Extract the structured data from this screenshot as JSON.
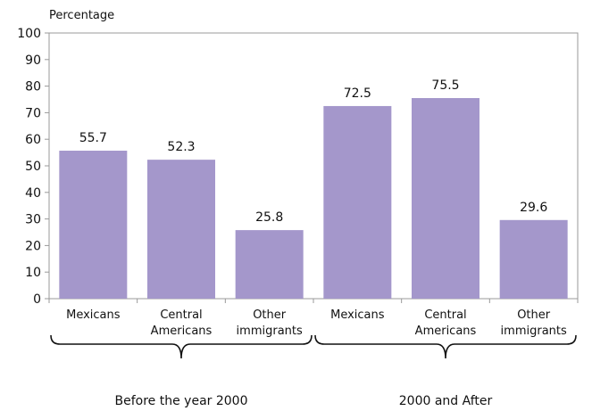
{
  "chart_data": {
    "type": "bar",
    "ylabel": "Percentage",
    "ylim": [
      0,
      100
    ],
    "yticks": [
      0,
      10,
      20,
      30,
      40,
      50,
      60,
      70,
      80,
      90,
      100
    ],
    "grid": false,
    "bar_color": "#a497cb",
    "categories": [
      [
        "Mexicans"
      ],
      [
        "Central",
        "Americans"
      ],
      [
        "Other",
        "immigrants"
      ],
      [
        "Mexicans"
      ],
      [
        "Central",
        "Americans"
      ],
      [
        "Other",
        "immigrants"
      ]
    ],
    "values": [
      55.7,
      52.3,
      25.8,
      72.5,
      75.5,
      29.6
    ],
    "value_labels": [
      "55.7",
      "52.3",
      "25.8",
      "72.5",
      "75.5",
      "29.6"
    ],
    "groups": [
      {
        "label": "Before the year 2000",
        "members": [
          0,
          1,
          2
        ]
      },
      {
        "label": "2000 and After",
        "members": [
          3,
          4,
          5
        ]
      }
    ]
  }
}
